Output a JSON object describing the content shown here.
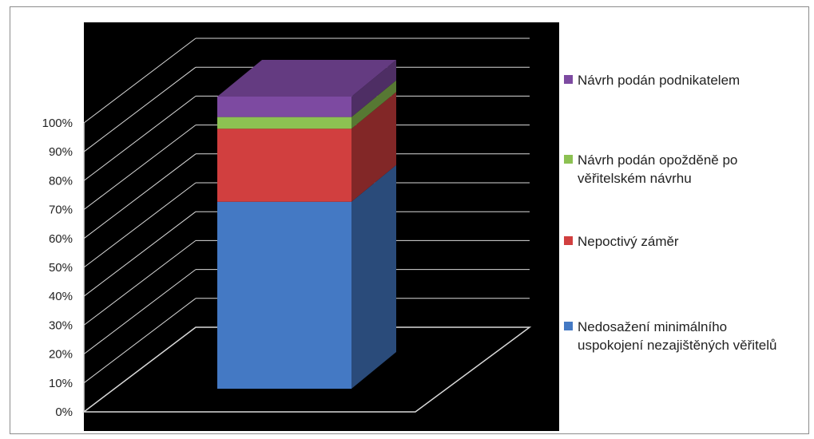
{
  "chart_data": {
    "type": "bar",
    "stacked": true,
    "three_d": true,
    "title": "",
    "xlabel": "",
    "ylabel": "",
    "ylim": [
      0,
      100
    ],
    "y_ticks": [
      "0%",
      "10%",
      "20%",
      "30%",
      "40%",
      "50%",
      "60%",
      "70%",
      "80%",
      "90%",
      "100%"
    ],
    "categories": [
      ""
    ],
    "grid": true,
    "legend_position": "right",
    "background": "#000000",
    "series": [
      {
        "name": "Nedosažení minimálního uspokojení nezajištěných věřitelů",
        "values": [
          64
        ],
        "color": "#4479c4"
      },
      {
        "name": "Nepoctivý záměr",
        "values": [
          25
        ],
        "color": "#d13f3f"
      },
      {
        "name": "Návrh podán opožděně po věřitelském návrhu",
        "values": [
          4
        ],
        "color": "#8cc152"
      },
      {
        "name": "Návrh podán podnikatelem",
        "values": [
          7
        ],
        "color": "#7d4aa1"
      }
    ],
    "legend_order": [
      3,
      2,
      1,
      0
    ]
  }
}
